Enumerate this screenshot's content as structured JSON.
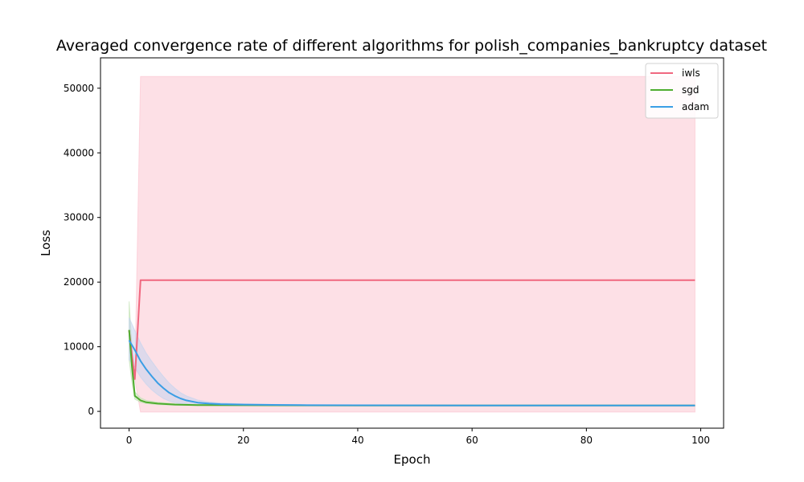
{
  "chart_data": {
    "type": "line",
    "title": "Averaged convergence rate of different algorithms for polish_companies_bankruptcy dataset",
    "xlabel": "Epoch",
    "ylabel": "Loss",
    "xlim": [
      -5,
      104
    ],
    "ylim": [
      -2600,
      54700
    ],
    "xticks": [
      0,
      20,
      40,
      60,
      80,
      100
    ],
    "yticks": [
      0,
      10000,
      20000,
      30000,
      40000,
      50000
    ],
    "grid": false,
    "legend_position": "top-right",
    "series": [
      {
        "name": "iwls",
        "color": "#f0677f",
        "band_color": "#fcc6d2",
        "x": [
          0,
          1,
          2,
          99
        ],
        "y": [
          12500,
          5000,
          20300,
          20300
        ],
        "lower": [
          12500,
          5000,
          -100,
          -100
        ],
        "upper": [
          12500,
          5000,
          51800,
          51800
        ]
      },
      {
        "name": "sgd",
        "color": "#4fad2f",
        "band_color": "#c3e3b5",
        "x": [
          0,
          0.5,
          1,
          2,
          3,
          5,
          8,
          12,
          20,
          40,
          60,
          80,
          99
        ],
        "y": [
          12600,
          7000,
          2400,
          1700,
          1400,
          1200,
          1050,
          980,
          950,
          920,
          910,
          900,
          900
        ],
        "lower": [
          8000,
          4500,
          1900,
          1400,
          1200,
          1050,
          960,
          920,
          900,
          890,
          885,
          880,
          880
        ],
        "upper": [
          17000,
          10000,
          3000,
          2100,
          1700,
          1400,
          1200,
          1080,
          1000,
          960,
          940,
          920,
          920
        ]
      },
      {
        "name": "adam",
        "color": "#3a9ee5",
        "band_color": "#c4d4ee",
        "x": [
          0,
          1,
          2,
          3,
          4,
          5,
          6,
          7,
          8,
          9,
          10,
          12,
          14,
          16,
          20,
          25,
          30,
          40,
          60,
          80,
          99
        ],
        "y": [
          11000,
          9500,
          7800,
          6500,
          5400,
          4400,
          3600,
          2900,
          2400,
          2000,
          1700,
          1350,
          1200,
          1120,
          1050,
          1000,
          970,
          940,
          910,
          900,
          900
        ],
        "lower": [
          8000,
          6800,
          5300,
          4200,
          3300,
          2600,
          2000,
          1600,
          1350,
          1180,
          1080,
          980,
          940,
          920,
          910,
          900,
          890,
          880,
          870,
          870,
          870
        ],
        "upper": [
          14500,
          12500,
          10600,
          9000,
          7700,
          6500,
          5400,
          4400,
          3600,
          2900,
          2400,
          1750,
          1450,
          1300,
          1150,
          1080,
          1030,
          990,
          950,
          930,
          930
        ]
      }
    ]
  }
}
